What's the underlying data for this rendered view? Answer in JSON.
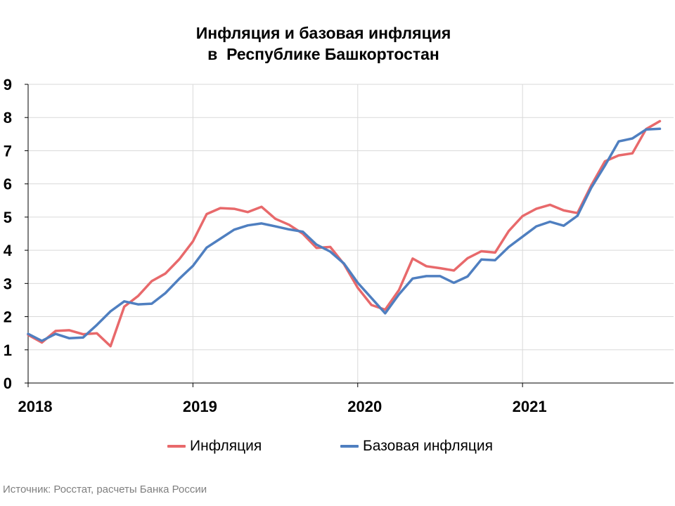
{
  "chart_data": {
    "type": "line",
    "title": [
      "Инфляция и базовая инфляция",
      "в  Республике Башкортостан"
    ],
    "xlabel": "",
    "ylabel": "",
    "ylim": [
      0,
      9
    ],
    "yticks": [
      0,
      1,
      2,
      3,
      4,
      5,
      6,
      7,
      8,
      9
    ],
    "year_labels": [
      "2018",
      "2019",
      "2020",
      "2021"
    ],
    "x": [
      "2018-01",
      "2018-02",
      "2018-03",
      "2018-04",
      "2018-05",
      "2018-06",
      "2018-07",
      "2018-08",
      "2018-09",
      "2018-10",
      "2018-11",
      "2018-12",
      "2019-01",
      "2019-02",
      "2019-03",
      "2019-04",
      "2019-05",
      "2019-06",
      "2019-07",
      "2019-08",
      "2019-09",
      "2019-10",
      "2019-11",
      "2019-12",
      "2020-01",
      "2020-02",
      "2020-03",
      "2020-04",
      "2020-05",
      "2020-06",
      "2020-07",
      "2020-08",
      "2020-09",
      "2020-10",
      "2020-11",
      "2020-12",
      "2021-01",
      "2021-02",
      "2021-03",
      "2021-04",
      "2021-05",
      "2021-06",
      "2021-07",
      "2021-08",
      "2021-09",
      "2021-10",
      "2021-11"
    ],
    "grid": true,
    "legend_position": "bottom",
    "series": [
      {
        "name": "Инфляция",
        "color": "#e8696b",
        "values": [
          1.45,
          1.22,
          1.57,
          1.59,
          1.47,
          1.5,
          1.11,
          2.3,
          2.62,
          3.07,
          3.3,
          3.73,
          4.27,
          5.09,
          5.27,
          5.25,
          5.15,
          5.31,
          4.95,
          4.77,
          4.5,
          4.07,
          4.1,
          3.58,
          2.87,
          2.35,
          2.21,
          2.8,
          3.75,
          3.52,
          3.46,
          3.39,
          3.76,
          3.97,
          3.93,
          4.58,
          5.03,
          5.25,
          5.37,
          5.2,
          5.12,
          5.95,
          6.68,
          6.86,
          6.92,
          7.65,
          7.89
        ]
      },
      {
        "name": "Базовая инфляция",
        "color": "#4f7fc0",
        "values": [
          1.48,
          1.27,
          1.48,
          1.35,
          1.37,
          1.75,
          2.16,
          2.46,
          2.37,
          2.39,
          2.71,
          3.14,
          3.53,
          4.08,
          4.35,
          4.62,
          4.75,
          4.81,
          4.72,
          4.63,
          4.56,
          4.17,
          3.96,
          3.6,
          3.02,
          2.56,
          2.1,
          2.67,
          3.15,
          3.22,
          3.22,
          3.02,
          3.21,
          3.72,
          3.7,
          4.1,
          4.41,
          4.72,
          4.86,
          4.74,
          5.04,
          5.88,
          6.55,
          7.28,
          7.37,
          7.64,
          7.66
        ]
      }
    ]
  },
  "source": "Источник: Росстат, расчеты Банка России"
}
